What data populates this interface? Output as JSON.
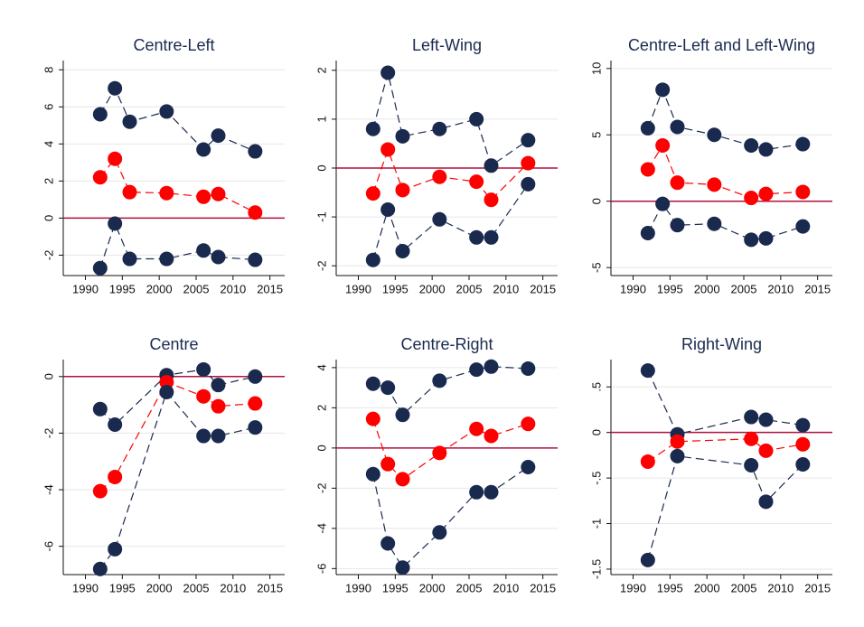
{
  "chart_data": [
    {
      "type": "line",
      "title": "Centre-Left",
      "x": [
        1992,
        1994,
        1996,
        2001,
        2006,
        2008,
        2013
      ],
      "series": [
        {
          "color": "#1a2a4f",
          "values": [
            5.6,
            7.0,
            5.2,
            5.75,
            3.7,
            4.45,
            3.6
          ]
        },
        {
          "color": "#ff0000",
          "values": [
            2.2,
            3.2,
            1.4,
            1.35,
            1.15,
            1.3,
            0.3
          ]
        },
        {
          "color": "#1a2a4f",
          "values": [
            -2.7,
            -0.3,
            -2.2,
            -2.2,
            -1.75,
            -2.1,
            -2.25
          ]
        }
      ],
      "xlim": [
        1987,
        2017
      ],
      "xticks": [
        1990,
        1995,
        2000,
        2005,
        2010,
        2015
      ],
      "ylim": [
        -3.1,
        8.5
      ],
      "yticks": [
        -2,
        0,
        2,
        4,
        6,
        8
      ],
      "grid": true,
      "hline": 0,
      "hline_color": "#b0123c"
    },
    {
      "type": "line",
      "title": "Left-Wing",
      "x": [
        1992,
        1994,
        1996,
        2001,
        2006,
        2008,
        2013
      ],
      "series": [
        {
          "color": "#1a2a4f",
          "values": [
            0.8,
            1.95,
            0.65,
            0.8,
            1.0,
            0.05,
            0.57
          ]
        },
        {
          "color": "#ff0000",
          "values": [
            -0.52,
            0.38,
            -0.45,
            -0.18,
            -0.28,
            -0.65,
            0.1
          ]
        },
        {
          "color": "#1a2a4f",
          "values": [
            -1.88,
            -0.85,
            -1.7,
            -1.05,
            -1.42,
            -1.42,
            -0.33
          ]
        }
      ],
      "xlim": [
        1987,
        2017
      ],
      "xticks": [
        1990,
        1995,
        2000,
        2005,
        2010,
        2015
      ],
      "ylim": [
        -2.2,
        2.2
      ],
      "yticks": [
        -2,
        -1,
        0,
        1,
        2
      ],
      "grid": true,
      "hline": 0,
      "hline_color": "#b0123c"
    },
    {
      "type": "line",
      "title": "Centre-Left and Left-Wing",
      "x": [
        1992,
        1994,
        1996,
        2001,
        2006,
        2008,
        2013
      ],
      "series": [
        {
          "color": "#1a2a4f",
          "values": [
            5.5,
            8.4,
            5.6,
            5.0,
            4.2,
            3.9,
            4.3
          ]
        },
        {
          "color": "#ff0000",
          "values": [
            2.4,
            4.2,
            1.4,
            1.25,
            0.25,
            0.55,
            0.7
          ]
        },
        {
          "color": "#1a2a4f",
          "values": [
            -2.4,
            -0.2,
            -1.8,
            -1.7,
            -2.9,
            -2.8,
            -1.9
          ]
        }
      ],
      "xlim": [
        1987,
        2017
      ],
      "xticks": [
        1990,
        1995,
        2000,
        2005,
        2010,
        2015
      ],
      "ylim": [
        -5.6,
        10.6
      ],
      "yticks": [
        -5,
        0,
        5,
        10
      ],
      "grid": true,
      "hline": 0,
      "hline_color": "#b0123c"
    },
    {
      "type": "line",
      "title": "Centre",
      "x": [
        1992,
        1994,
        2001,
        2006,
        2008,
        2013
      ],
      "series": [
        {
          "color": "#1a2a4f",
          "values": [
            -1.15,
            -1.7,
            0.05,
            0.25,
            -0.3,
            0.0
          ]
        },
        {
          "color": "#ff0000",
          "values": [
            -4.05,
            -3.55,
            -0.2,
            -0.7,
            -1.05,
            -0.95
          ]
        },
        {
          "color": "#1a2a4f",
          "values": [
            -6.8,
            -6.1,
            -0.55,
            -2.1,
            -2.1,
            -1.8
          ]
        }
      ],
      "xlim": [
        1987,
        2017
      ],
      "xticks": [
        1990,
        1995,
        2000,
        2005,
        2010,
        2015
      ],
      "ylim": [
        -7.0,
        0.6
      ],
      "yticks": [
        -6,
        -4,
        -2,
        0
      ],
      "grid": true,
      "hline": 0,
      "hline_color": "#b0123c"
    },
    {
      "type": "line",
      "title": "Centre-Right",
      "x": [
        1992,
        1994,
        1996,
        2001,
        2006,
        2008,
        2013
      ],
      "series": [
        {
          "color": "#1a2a4f",
          "values": [
            3.2,
            3.0,
            1.65,
            3.35,
            3.9,
            4.05,
            3.95
          ]
        },
        {
          "color": "#ff0000",
          "values": [
            1.45,
            -0.8,
            -1.55,
            -0.25,
            0.95,
            0.6,
            1.2
          ]
        },
        {
          "color": "#1a2a4f",
          "values": [
            -1.3,
            -4.75,
            -5.95,
            -4.2,
            -2.2,
            -2.2,
            -0.95
          ]
        }
      ],
      "xlim": [
        1987,
        2017
      ],
      "xticks": [
        1990,
        1995,
        2000,
        2005,
        2010,
        2015
      ],
      "ylim": [
        -6.3,
        4.4
      ],
      "yticks": [
        -6,
        -4,
        -2,
        0,
        2,
        4
      ],
      "grid": true,
      "hline": 0,
      "hline_color": "#b0123c"
    },
    {
      "type": "line",
      "title": "Right-Wing",
      "x": [
        1992,
        1996,
        2006,
        2008,
        2013
      ],
      "series": [
        {
          "color": "#1a2a4f",
          "values": [
            0.68,
            -0.02,
            0.17,
            0.14,
            0.08
          ]
        },
        {
          "color": "#ff0000",
          "values": [
            -0.32,
            -0.1,
            -0.07,
            -0.2,
            -0.13
          ]
        },
        {
          "color": "#1a2a4f",
          "values": [
            -1.4,
            -0.26,
            -0.36,
            -0.76,
            -0.35
          ]
        }
      ],
      "xlim": [
        1987,
        2017
      ],
      "xticks": [
        1990,
        1995,
        2000,
        2005,
        2010,
        2015
      ],
      "ylim": [
        -1.56,
        0.8
      ],
      "yticks": [
        -1.5,
        -1,
        {
          "value": -0.5,
          "label": "-.5"
        },
        0,
        {
          "value": 0.5,
          "label": ".5"
        }
      ],
      "grid": true,
      "hline": 0,
      "hline_color": "#b0123c"
    }
  ]
}
